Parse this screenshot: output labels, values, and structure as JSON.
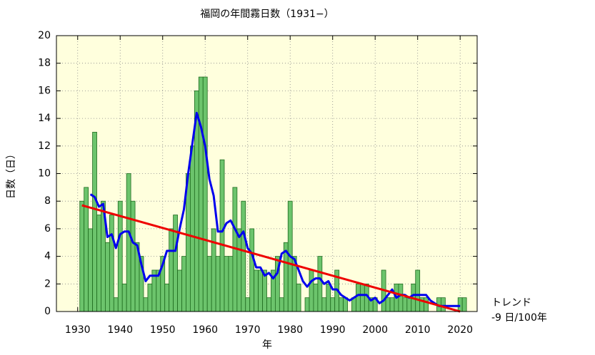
{
  "chart_data": {
    "type": "bar",
    "title": "福岡の年間霧日数（1931−）",
    "xlabel": "年",
    "ylabel": "日数（日）",
    "annotations": [
      "トレンド",
      "-9 日/100年"
    ],
    "xlim": [
      1925,
      2024
    ],
    "ylim": [
      0,
      20
    ],
    "xticks": [
      1930,
      1940,
      1950,
      1960,
      1970,
      1980,
      1990,
      2000,
      2010,
      2020
    ],
    "yticks": [
      0,
      2,
      4,
      6,
      8,
      10,
      12,
      14,
      16,
      18,
      20
    ],
    "grid": true,
    "background": "#ffffdd",
    "series": [
      {
        "type": "bar",
        "color": "#6cc46c",
        "edge": "#1f6b1f",
        "x": [
          1931,
          1932,
          1933,
          1934,
          1935,
          1936,
          1937,
          1938,
          1939,
          1940,
          1941,
          1942,
          1943,
          1944,
          1945,
          1946,
          1947,
          1948,
          1949,
          1950,
          1951,
          1952,
          1953,
          1954,
          1955,
          1956,
          1957,
          1958,
          1959,
          1960,
          1961,
          1962,
          1963,
          1964,
          1965,
          1966,
          1967,
          1968,
          1969,
          1970,
          1971,
          1972,
          1973,
          1974,
          1975,
          1976,
          1977,
          1978,
          1979,
          1980,
          1981,
          1982,
          1983,
          1984,
          1985,
          1986,
          1987,
          1988,
          1989,
          1990,
          1991,
          1992,
          1993,
          1994,
          1995,
          1996,
          1997,
          1998,
          1999,
          2000,
          2001,
          2002,
          2003,
          2004,
          2005,
          2006,
          2007,
          2008,
          2009,
          2010,
          2011,
          2012,
          2013,
          2014,
          2015,
          2016,
          2017,
          2018,
          2019,
          2020,
          2021
        ],
        "values": [
          8,
          9,
          6,
          13,
          7,
          8,
          5,
          7,
          1,
          8,
          2,
          10,
          8,
          5,
          4,
          1,
          2,
          3,
          3,
          4,
          2,
          6,
          7,
          3,
          4,
          10,
          12,
          16,
          17,
          17,
          4,
          6,
          4,
          11,
          4,
          4,
          9,
          6,
          8,
          1,
          6,
          3,
          3,
          3,
          1,
          3,
          4,
          1,
          5,
          8,
          4,
          2,
          0,
          1,
          3,
          2,
          4,
          1,
          2,
          1,
          3,
          1,
          1,
          0,
          1,
          2,
          2,
          2,
          1,
          1,
          0,
          3,
          1,
          1,
          2,
          2,
          1,
          1,
          2,
          3,
          1,
          1,
          0,
          0,
          1,
          1,
          0,
          0,
          0,
          1,
          1
        ]
      },
      {
        "type": "line",
        "color": "#0000ee",
        "x": [
          1933,
          1934,
          1935,
          1936,
          1937,
          1938,
          1939,
          1940,
          1941,
          1942,
          1943,
          1944,
          1945,
          1946,
          1947,
          1948,
          1949,
          1950,
          1951,
          1952,
          1953,
          1954,
          1955,
          1956,
          1957,
          1958,
          1959,
          1960,
          1961,
          1962,
          1963,
          1964,
          1965,
          1966,
          1967,
          1968,
          1969,
          1970,
          1971,
          1972,
          1973,
          1974,
          1975,
          1976,
          1977,
          1978,
          1979,
          1980,
          1981,
          1982,
          1983,
          1984,
          1985,
          1986,
          1987,
          1988,
          1989,
          1990,
          1991,
          1992,
          1993,
          1994,
          1995,
          1996,
          1997,
          1998,
          1999,
          2000,
          2001,
          2002,
          2003,
          2004,
          2005,
          2006,
          2007,
          2008,
          2009,
          2010,
          2011,
          2012,
          2013,
          2014,
          2015,
          2016,
          2017,
          2018,
          2019,
          2020
        ],
        "values": [
          8.5,
          8.3,
          7.6,
          7.8,
          5.4,
          5.6,
          4.6,
          5.6,
          5.8,
          5.8,
          5.0,
          4.8,
          3.4,
          2.2,
          2.6,
          2.6,
          2.6,
          3.4,
          4.4,
          4.4,
          4.4,
          6.0,
          7.4,
          10.0,
          12.2,
          14.4,
          13.4,
          12.0,
          9.6,
          8.4,
          5.8,
          5.8,
          6.4,
          6.6,
          6.0,
          5.4,
          5.8,
          4.6,
          4.2,
          3.2,
          3.2,
          2.6,
          2.8,
          2.4,
          2.8,
          4.2,
          4.4,
          4.0,
          3.8,
          3.0,
          2.2,
          1.8,
          2.2,
          2.4,
          2.4,
          2.0,
          2.2,
          1.6,
          1.6,
          1.2,
          1.0,
          0.8,
          1.0,
          1.2,
          1.2,
          1.2,
          0.8,
          1.0,
          0.6,
          0.8,
          1.2,
          1.6,
          1.0,
          1.2,
          1.2,
          1.0,
          1.2,
          1.2,
          1.2,
          1.2,
          0.8,
          0.6,
          0.4,
          0.4,
          0.4,
          0.4,
          0.4,
          0.4
        ]
      },
      {
        "type": "line",
        "color": "#ee0000",
        "x": [
          1931,
          2020
        ],
        "values": [
          7.7,
          0
        ]
      }
    ]
  }
}
